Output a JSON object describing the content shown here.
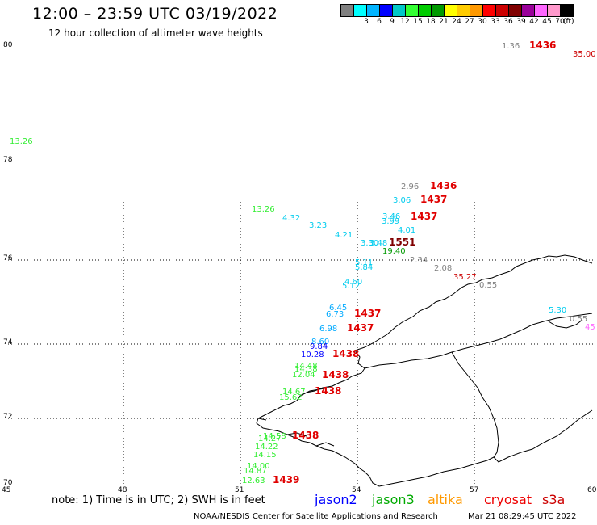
{
  "title": "12:00 – 23:59 UTC 03/19/2022",
  "subtitle": "12 hour collection of altimeter wave heights",
  "legend": {
    "unit": "(ft)",
    "swatches": [
      {
        "color": "#808080",
        "label": ""
      },
      {
        "color": "#00ffff",
        "label": "3"
      },
      {
        "color": "#00b4ff",
        "label": "6"
      },
      {
        "color": "#0000ff",
        "label": "9"
      },
      {
        "color": "#00c8c8",
        "label": "12"
      },
      {
        "color": "#33ff33",
        "label": "15"
      },
      {
        "color": "#00cc00",
        "label": "18"
      },
      {
        "color": "#009900",
        "label": "21"
      },
      {
        "color": "#ffff00",
        "label": "24"
      },
      {
        "color": "#ffcc00",
        "label": "27"
      },
      {
        "color": "#ff9900",
        "label": "30"
      },
      {
        "color": "#ff0000",
        "label": "33"
      },
      {
        "color": "#cc0000",
        "label": "36"
      },
      {
        "color": "#800000",
        "label": "39"
      },
      {
        "color": "#990099",
        "label": "42"
      },
      {
        "color": "#ff66ff",
        "label": "45"
      },
      {
        "color": "#ff99cc",
        "label": "70"
      },
      {
        "color": "#000000",
        "label": ""
      }
    ]
  },
  "axes": {
    "lat_labels": [
      "80",
      "78",
      "76",
      "74",
      "72",
      "70"
    ],
    "lon_labels": [
      "45",
      "48",
      "51",
      "54",
      "57",
      "60"
    ]
  },
  "wave_heights": [
    {
      "text": "1.36",
      "color": "#808080"
    },
    {
      "text": "35.00",
      "color": "#cc0000"
    },
    {
      "text": "13.26",
      "color": "#33ee33"
    },
    {
      "text": "2.96",
      "color": "#808080"
    },
    {
      "text": "3.06",
      "color": "#00ccee"
    },
    {
      "text": "13.26",
      "color": "#33ee33"
    },
    {
      "text": "4.32",
      "color": "#00ccee"
    },
    {
      "text": "3.23",
      "color": "#00ccee"
    },
    {
      "text": "3.46",
      "color": "#00ccee"
    },
    {
      "text": "3.99",
      "color": "#00ccee"
    },
    {
      "text": "4.01",
      "color": "#00ccee"
    },
    {
      "text": "4.21",
      "color": "#00ccee"
    },
    {
      "text": "3.30",
      "color": "#00ccee"
    },
    {
      "text": "3.48",
      "color": "#00ccee"
    },
    {
      "text": "19.40",
      "color": "#009900"
    },
    {
      "text": "2.34",
      "color": "#808080"
    },
    {
      "text": "5.11",
      "color": "#00ccee"
    },
    {
      "text": "5.84",
      "color": "#00ccee"
    },
    {
      "text": "2.08",
      "color": "#808080"
    },
    {
      "text": "35.27",
      "color": "#cc0000"
    },
    {
      "text": "4.60",
      "color": "#00ccee"
    },
    {
      "text": "5.12",
      "color": "#00ccee"
    },
    {
      "text": "0.55",
      "color": "#808080"
    },
    {
      "text": "6.45",
      "color": "#00aaff"
    },
    {
      "text": "6.73",
      "color": "#00aaff"
    },
    {
      "text": "5.30",
      "color": "#00ccee"
    },
    {
      "text": "0.55",
      "color": "#808080"
    },
    {
      "text": "45",
      "color": "#ff66ff"
    },
    {
      "text": "6.98",
      "color": "#00aaff"
    },
    {
      "text": "8.60",
      "color": "#00aaff"
    },
    {
      "text": "9.84",
      "color": "#0000ff"
    },
    {
      "text": "10.28",
      "color": "#0000ff"
    },
    {
      "text": "14.48",
      "color": "#33ee33"
    },
    {
      "text": "14.38",
      "color": "#33ee33"
    },
    {
      "text": "12.04",
      "color": "#33ee33"
    },
    {
      "text": "14.67",
      "color": "#33ee33"
    },
    {
      "text": "15.62",
      "color": "#33ee33"
    },
    {
      "text": "14.58",
      "color": "#33ee33"
    },
    {
      "text": "14.27",
      "color": "#33ee33"
    },
    {
      "text": "14.22",
      "color": "#33ee33"
    },
    {
      "text": "14.15",
      "color": "#33ee33"
    },
    {
      "text": "14.00",
      "color": "#33ee33"
    },
    {
      "text": "14.87",
      "color": "#33ee33"
    },
    {
      "text": "12.63",
      "color": "#33ee33"
    }
  ],
  "pass_times": [
    "1436",
    "1436",
    "1437",
    "1437",
    "1551",
    "1437",
    "1437",
    "1438",
    "1438",
    "1438",
    "1438",
    "1439"
  ],
  "note": "note: 1) Time is in UTC; 2) SWH is in feet",
  "satellites": [
    {
      "name": "jason2",
      "color": "#0000ff"
    },
    {
      "name": "jason3",
      "color": "#00aa00"
    },
    {
      "name": "altika",
      "color": "#ff9900"
    },
    {
      "name": "cryosat",
      "color": "#ee0000"
    },
    {
      "name": "s3a",
      "color": "#cc0000"
    }
  ],
  "footer": {
    "agency": "NOAA/NESDIS Center for Satellite Applications and Research",
    "timestamp": "Mar 21 08:29:45 UTC 2022"
  }
}
